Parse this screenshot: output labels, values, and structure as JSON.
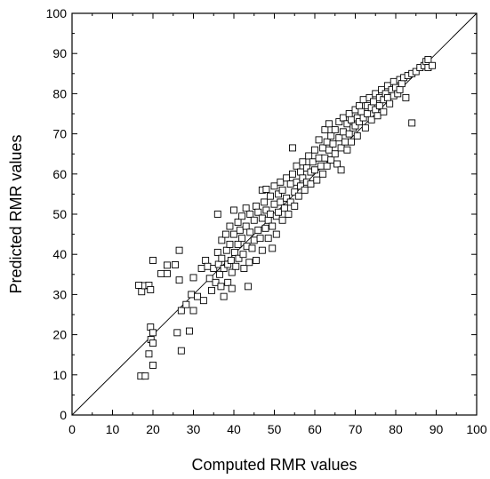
{
  "chart_data": {
    "type": "scatter",
    "xlabel": "Computed RMR values",
    "ylabel": "Predicted RMR values",
    "xlim": [
      0,
      100
    ],
    "ylim": [
      0,
      100
    ],
    "x_ticks": [
      "0",
      "10",
      "20",
      "30",
      "40",
      "50",
      "60",
      "70",
      "80",
      "90",
      "100"
    ],
    "y_ticks": [
      "0",
      "10",
      "20",
      "30",
      "40",
      "50",
      "60",
      "70",
      "80",
      "90",
      "100"
    ],
    "reference_line": {
      "from": [
        0,
        0
      ],
      "to": [
        100,
        100
      ]
    },
    "marker": "open-square",
    "grid": false,
    "points": [
      [
        16.5,
        32.3
      ],
      [
        17.2,
        30.7
      ],
      [
        18.0,
        32.2
      ],
      [
        19.0,
        32.3
      ],
      [
        19.4,
        31.2
      ],
      [
        20.0,
        38.5
      ],
      [
        17.0,
        9.7
      ],
      [
        18.1,
        9.7
      ],
      [
        19.0,
        15.2
      ],
      [
        19.5,
        18.8
      ],
      [
        20.0,
        12.4
      ],
      [
        20.0,
        17.9
      ],
      [
        19.4,
        21.9
      ],
      [
        20.0,
        20.5
      ],
      [
        22.0,
        35.2
      ],
      [
        23.5,
        37.3
      ],
      [
        23.5,
        35.2
      ],
      [
        25.5,
        37.4
      ],
      [
        26.5,
        41.0
      ],
      [
        26.5,
        33.6
      ],
      [
        26.0,
        20.5
      ],
      [
        27.0,
        16.0
      ],
      [
        27.0,
        26.0
      ],
      [
        28.2,
        27.5
      ],
      [
        29.0,
        20.9
      ],
      [
        30.0,
        26.0
      ],
      [
        29.5,
        30.0
      ],
      [
        30.0,
        34.2
      ],
      [
        31.0,
        29.5
      ],
      [
        32.0,
        36.5
      ],
      [
        32.5,
        28.5
      ],
      [
        33.0,
        38.5
      ],
      [
        33.5,
        37.0
      ],
      [
        34.0,
        34.0
      ],
      [
        34.5,
        31.0
      ],
      [
        35.0,
        36.5
      ],
      [
        35.5,
        33.0
      ],
      [
        36.0,
        50.0
      ],
      [
        36.0,
        40.5
      ],
      [
        36.2,
        37.5
      ],
      [
        36.5,
        35.0
      ],
      [
        36.8,
        32.0
      ],
      [
        37.0,
        43.5
      ],
      [
        37.0,
        39.0
      ],
      [
        37.5,
        36.5
      ],
      [
        37.5,
        29.5
      ],
      [
        38.0,
        45.0
      ],
      [
        38.2,
        41.0
      ],
      [
        38.5,
        37.5
      ],
      [
        38.5,
        33.0
      ],
      [
        39.0,
        47.0
      ],
      [
        39.0,
        42.5
      ],
      [
        39.3,
        38.5
      ],
      [
        39.5,
        35.5
      ],
      [
        39.5,
        31.5
      ],
      [
        40.0,
        51.0
      ],
      [
        40.0,
        45.0
      ],
      [
        40.2,
        40.5
      ],
      [
        40.5,
        37.0
      ],
      [
        41.0,
        48.0
      ],
      [
        41.0,
        42.5
      ],
      [
        41.2,
        39.0
      ],
      [
        41.5,
        46.0
      ],
      [
        42.0,
        49.5
      ],
      [
        42.0,
        44.0
      ],
      [
        42.3,
        40.0
      ],
      [
        42.5,
        36.5
      ],
      [
        43.0,
        51.5
      ],
      [
        43.0,
        47.0
      ],
      [
        43.2,
        42.0
      ],
      [
        43.5,
        32.0
      ],
      [
        43.8,
        38.0
      ],
      [
        44.0,
        50.0
      ],
      [
        44.0,
        45.5
      ],
      [
        44.5,
        41.5
      ],
      [
        45.0,
        48.5
      ],
      [
        45.0,
        43.5
      ],
      [
        45.5,
        52.0
      ],
      [
        45.5,
        38.5
      ],
      [
        46.0,
        50.5
      ],
      [
        46.0,
        46.0
      ],
      [
        46.5,
        44.0
      ],
      [
        47.0,
        56.0
      ],
      [
        47.0,
        49.0
      ],
      [
        47.0,
        41.0
      ],
      [
        47.5,
        53.0
      ],
      [
        47.8,
        46.5
      ],
      [
        48.0,
        56.2
      ],
      [
        48.0,
        51.0
      ],
      [
        48.5,
        48.5
      ],
      [
        48.5,
        44.0
      ],
      [
        49.0,
        54.5
      ],
      [
        49.0,
        50.0
      ],
      [
        49.5,
        47.0
      ],
      [
        49.5,
        41.5
      ],
      [
        50.0,
        57.0
      ],
      [
        50.0,
        52.5
      ],
      [
        50.5,
        49.5
      ],
      [
        50.5,
        45.0
      ],
      [
        51.0,
        55.0
      ],
      [
        51.0,
        50.5
      ],
      [
        51.5,
        58.0
      ],
      [
        51.5,
        53.0
      ],
      [
        52.0,
        48.5
      ],
      [
        52.0,
        56.0
      ],
      [
        52.5,
        51.5
      ],
      [
        53.0,
        59.0
      ],
      [
        53.0,
        54.0
      ],
      [
        53.5,
        50.0
      ],
      [
        54.0,
        57.5
      ],
      [
        54.0,
        53.0
      ],
      [
        54.5,
        66.5
      ],
      [
        54.5,
        60.0
      ],
      [
        55.0,
        55.5
      ],
      [
        55.0,
        52.0
      ],
      [
        55.5,
        62.0
      ],
      [
        55.5,
        58.0
      ],
      [
        56.0,
        54.5
      ],
      [
        56.5,
        60.5
      ],
      [
        56.5,
        57.0
      ],
      [
        57.0,
        63.0
      ],
      [
        57.0,
        59.0
      ],
      [
        57.5,
        56.0
      ],
      [
        58.0,
        61.5
      ],
      [
        58.0,
        58.0
      ],
      [
        58.5,
        64.5
      ],
      [
        59.0,
        60.5
      ],
      [
        59.0,
        57.5
      ],
      [
        59.5,
        63.0
      ],
      [
        60.0,
        66.0
      ],
      [
        60.0,
        61.0
      ],
      [
        60.5,
        58.5
      ],
      [
        61.0,
        64.0
      ],
      [
        61.0,
        68.5
      ],
      [
        61.5,
        62.0
      ],
      [
        62.0,
        66.5
      ],
      [
        62.0,
        60.0
      ],
      [
        62.5,
        71.0
      ],
      [
        62.5,
        64.0
      ],
      [
        63.0,
        68.0
      ],
      [
        63.0,
        62.0
      ],
      [
        63.5,
        72.5
      ],
      [
        63.5,
        66.0
      ],
      [
        64.0,
        69.5
      ],
      [
        64.0,
        63.5
      ],
      [
        64.5,
        67.5
      ],
      [
        65.0,
        71.0
      ],
      [
        65.0,
        65.0
      ],
      [
        65.5,
        62.5
      ],
      [
        66.0,
        73.0
      ],
      [
        66.0,
        69.0
      ],
      [
        66.5,
        66.5
      ],
      [
        66.5,
        61.0
      ],
      [
        67.0,
        74.0
      ],
      [
        67.0,
        70.5
      ],
      [
        67.5,
        68.0
      ],
      [
        68.0,
        72.5
      ],
      [
        68.0,
        66.0
      ],
      [
        68.5,
        75.0
      ],
      [
        68.5,
        70.0
      ],
      [
        69.0,
        73.5
      ],
      [
        69.0,
        68.0
      ],
      [
        69.5,
        71.5
      ],
      [
        70.0,
        76.0
      ],
      [
        70.0,
        72.0
      ],
      [
        70.5,
        74.0
      ],
      [
        70.5,
        69.5
      ],
      [
        71.0,
        77.0
      ],
      [
        71.0,
        73.0
      ],
      [
        71.5,
        75.5
      ],
      [
        72.0,
        78.5
      ],
      [
        72.0,
        74.0
      ],
      [
        72.5,
        71.5
      ],
      [
        73.0,
        77.0
      ],
      [
        73.0,
        75.0
      ],
      [
        73.5,
        79.0
      ],
      [
        74.0,
        76.5
      ],
      [
        74.0,
        73.5
      ],
      [
        74.5,
        78.0
      ],
      [
        75.0,
        80.0
      ],
      [
        75.0,
        76.0
      ],
      [
        75.5,
        74.5
      ],
      [
        76.0,
        79.0
      ],
      [
        76.0,
        77.0
      ],
      [
        76.5,
        81.0
      ],
      [
        77.0,
        78.5
      ],
      [
        77.0,
        75.5
      ],
      [
        77.5,
        80.0
      ],
      [
        78.0,
        82.0
      ],
      [
        78.0,
        79.0
      ],
      [
        78.5,
        77.5
      ],
      [
        79.0,
        81.0
      ],
      [
        79.5,
        83.0
      ],
      [
        79.5,
        79.5
      ],
      [
        80.0,
        81.5
      ],
      [
        80.5,
        80.0
      ],
      [
        81.0,
        83.5
      ],
      [
        81.0,
        81.0
      ],
      [
        81.5,
        82.5
      ],
      [
        82.0,
        84.0
      ],
      [
        82.5,
        79.0
      ],
      [
        83.0,
        84.5
      ],
      [
        84.0,
        72.7
      ],
      [
        84.0,
        85.0
      ],
      [
        85.0,
        85.5
      ],
      [
        86.0,
        86.5
      ],
      [
        87.0,
        87.0
      ],
      [
        87.5,
        88.0
      ],
      [
        88.0,
        86.5
      ],
      [
        88.0,
        88.5
      ],
      [
        89.0,
        87.0
      ]
    ]
  }
}
